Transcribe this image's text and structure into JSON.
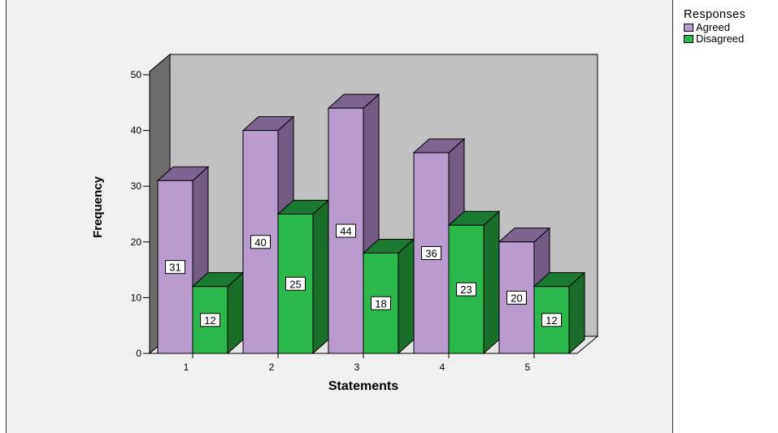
{
  "chart_data": {
    "type": "bar",
    "title": "",
    "xlabel": "Statements",
    "ylabel": "Frequency",
    "categories": [
      "1",
      "2",
      "3",
      "4",
      "5"
    ],
    "ylim": [
      0,
      50
    ],
    "yticks": [
      0,
      10,
      20,
      30,
      40,
      50
    ],
    "grid": false,
    "style": "3d-clustered",
    "legend": {
      "title": "Responses",
      "placement": "right"
    },
    "series": [
      {
        "name": "Agreed",
        "values": [
          31,
          40,
          44,
          36,
          20
        ],
        "color": "#b99ccd",
        "top_color": "#7d6590",
        "side_color": "#725a82"
      },
      {
        "name": "Disagreed",
        "values": [
          12,
          25,
          18,
          23,
          12
        ],
        "color": "#2db84b",
        "top_color": "#1a7a33",
        "side_color": "#1a6e2c"
      }
    ],
    "colors": {
      "back_wall": "#c0c0c0",
      "side_wall": "#6b6b6b",
      "floor": "#e6e6e6"
    }
  }
}
